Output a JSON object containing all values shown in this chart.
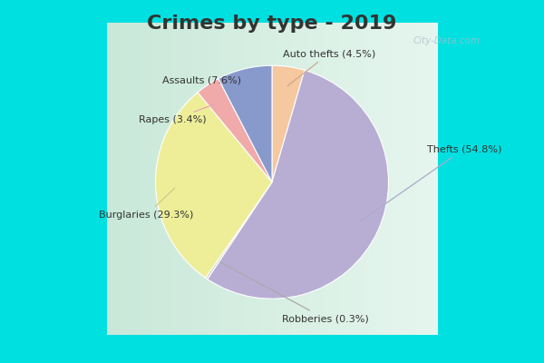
{
  "title": "Crimes by type - 2019",
  "wedge_values": [
    4.5,
    54.8,
    0.3,
    29.3,
    3.4,
    7.6
  ],
  "wedge_colors": [
    "#f5c8a0",
    "#b8aed4",
    "#cccccc",
    "#eeee99",
    "#f0aaaa",
    "#8899cc"
  ],
  "wedge_labels": [
    "Auto thefts (4.5%)",
    "Thefts (54.8%)",
    "Robberies (0.3%)",
    "Burglaries (29.3%)",
    "Rapes (3.4%)",
    "Assaults (7.6%)"
  ],
  "background_border": "#00e0e0",
  "background_inner": "#c8e8d8",
  "title_color": "#333333",
  "title_fontsize": 16,
  "label_fontsize": 8,
  "watermark": "City-Data.com",
  "startangle": 90,
  "border_thickness": 0.035
}
